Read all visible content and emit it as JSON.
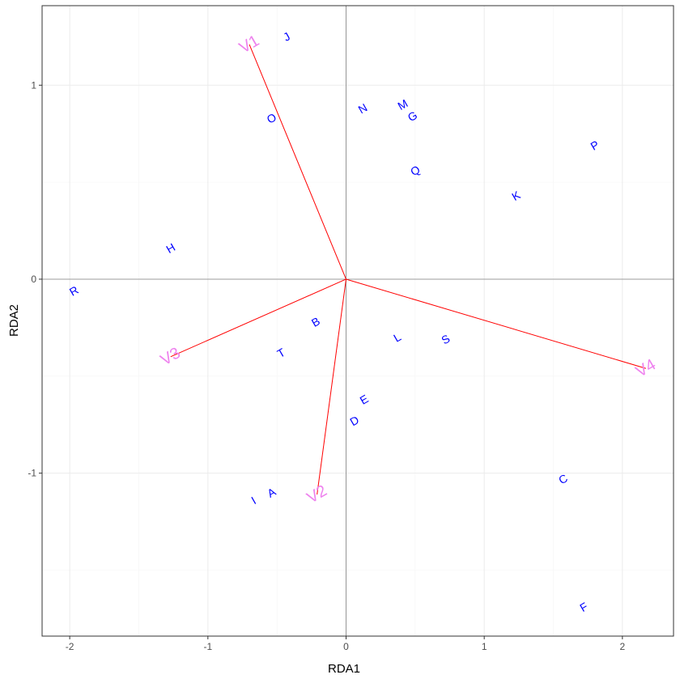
{
  "chart_data": {
    "type": "scatter",
    "title": "",
    "xlabel": "RDA1",
    "ylabel": "RDA2",
    "xlim": [
      -2.2,
      2.37
    ],
    "ylim": [
      -1.84,
      1.41
    ],
    "x_ticks": [
      -2,
      -1,
      0,
      1,
      2
    ],
    "y_ticks": [
      -1,
      0,
      1
    ],
    "x_tick_labels": [
      "-2",
      "-1",
      "0",
      "1",
      "2"
    ],
    "y_tick_labels": [
      "-1",
      "0",
      "1"
    ],
    "grid": true,
    "zero_lines": true,
    "colors": {
      "sites": "#0000FF",
      "arrows": "#FF0000",
      "arrow_labels": "#EE82EE",
      "grid_major": "#ebebeb",
      "grid_minor": "#f5f5f5",
      "zero_line": "#808080",
      "border": "#333333"
    },
    "sites": [
      {
        "label": "J",
        "x": -0.43,
        "y": 1.25
      },
      {
        "label": "N",
        "x": 0.12,
        "y": 0.88
      },
      {
        "label": "M",
        "x": 0.41,
        "y": 0.9
      },
      {
        "label": "G",
        "x": 0.48,
        "y": 0.84
      },
      {
        "label": "O",
        "x": -0.54,
        "y": 0.83
      },
      {
        "label": "P",
        "x": 1.8,
        "y": 0.69
      },
      {
        "label": "Q",
        "x": 0.5,
        "y": 0.56
      },
      {
        "label": "K",
        "x": 1.23,
        "y": 0.43
      },
      {
        "label": "H",
        "x": -1.27,
        "y": 0.16
      },
      {
        "label": "R",
        "x": -1.97,
        "y": -0.06
      },
      {
        "label": "B",
        "x": -0.22,
        "y": -0.22
      },
      {
        "label": "L",
        "x": 0.37,
        "y": -0.3
      },
      {
        "label": "S",
        "x": 0.72,
        "y": -0.31
      },
      {
        "label": "T",
        "x": -0.47,
        "y": -0.38
      },
      {
        "label": "E",
        "x": 0.13,
        "y": -0.62
      },
      {
        "label": "D",
        "x": 0.06,
        "y": -0.73
      },
      {
        "label": "C",
        "x": 1.57,
        "y": -1.03
      },
      {
        "label": "A",
        "x": -0.54,
        "y": -1.1
      },
      {
        "label": "I",
        "x": -0.67,
        "y": -1.14
      },
      {
        "label": "F",
        "x": 1.72,
        "y": -1.69
      }
    ],
    "arrows": [
      {
        "label": "V1",
        "x": -0.7,
        "y": 1.21
      },
      {
        "label": "V2",
        "x": -0.21,
        "y": -1.11
      },
      {
        "label": "V3",
        "x": -1.27,
        "y": -0.4
      },
      {
        "label": "V4",
        "x": 2.17,
        "y": -0.46
      }
    ]
  }
}
